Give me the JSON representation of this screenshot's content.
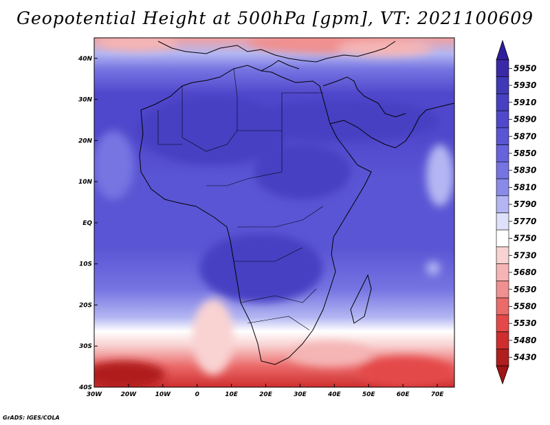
{
  "title": "Geopotential Height at 500hPa [gpm], VT: 2021100609",
  "credit": "GrADS: IGES/COLA",
  "map": {
    "lon_range": [
      -30,
      75
    ],
    "lat_range": [
      -40,
      45
    ],
    "x_ticks": [
      "30W",
      "20W",
      "10W",
      "0",
      "10E",
      "20E",
      "30E",
      "40E",
      "50E",
      "60E",
      "70E"
    ],
    "y_ticks": [
      "40N",
      "30N",
      "20N",
      "10N",
      "EQ",
      "10S",
      "20S",
      "30S",
      "40S"
    ],
    "coastline_color": "#000000"
  },
  "colorbar": {
    "levels": [
      "5950",
      "5930",
      "5910",
      "5890",
      "5870",
      "5850",
      "5830",
      "5810",
      "5790",
      "5770",
      "5750",
      "5730",
      "5680",
      "5630",
      "5580",
      "5530",
      "5480",
      "5430"
    ],
    "colors": [
      "#3a2aa8",
      "#3f39b8",
      "#4740c2",
      "#5048cc",
      "#5a55d4",
      "#6763dc",
      "#7674e2",
      "#8a8ae8",
      "#b3b6f2",
      "#dfe0fa",
      "#ffffff",
      "#f9d2d2",
      "#f5b5b5",
      "#f09090",
      "#eb6a6a",
      "#e44848",
      "#cf2e2e",
      "#b01e1e"
    ],
    "top_arrow_color": "#2f1f9c",
    "bottom_arrow_color": "#a01515"
  }
}
